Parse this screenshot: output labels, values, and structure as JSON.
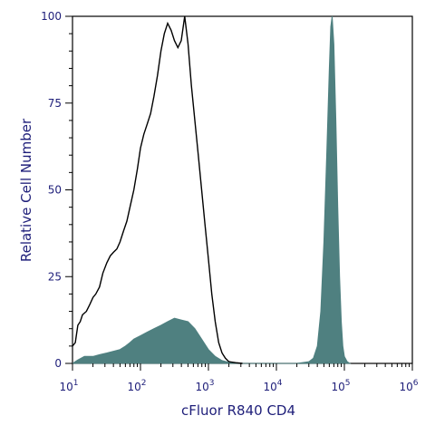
{
  "chart_data": {
    "type": "area",
    "xlabel": "cFluor R840 CD4",
    "ylabel": "Relative Cell Number",
    "x_scale": "log",
    "xlim": [
      10,
      1000000
    ],
    "ylim": [
      0,
      100
    ],
    "x_ticks": [
      {
        "base": "10",
        "exp": "1"
      },
      {
        "base": "10",
        "exp": "2"
      },
      {
        "base": "10",
        "exp": "3"
      },
      {
        "base": "10",
        "exp": "4"
      },
      {
        "base": "10",
        "exp": "5"
      },
      {
        "base": "10",
        "exp": "6"
      }
    ],
    "y_ticks": [
      "0",
      "25",
      "50",
      "75",
      "100"
    ],
    "grid": false,
    "series": [
      {
        "style": "outline",
        "color": "#000000",
        "points": [
          [
            10,
            5
          ],
          [
            11,
            6
          ],
          [
            12,
            11
          ],
          [
            13,
            12
          ],
          [
            14,
            14
          ],
          [
            16,
            15
          ],
          [
            18,
            17
          ],
          [
            20,
            19
          ],
          [
            22,
            20
          ],
          [
            25,
            22
          ],
          [
            28,
            26
          ],
          [
            32,
            29
          ],
          [
            36,
            31
          ],
          [
            40,
            32
          ],
          [
            45,
            33
          ],
          [
            50,
            35
          ],
          [
            56,
            38
          ],
          [
            63,
            41
          ],
          [
            70,
            45
          ],
          [
            80,
            50
          ],
          [
            90,
            56
          ],
          [
            100,
            62
          ],
          [
            112,
            66
          ],
          [
            126,
            69
          ],
          [
            141,
            72
          ],
          [
            158,
            77
          ],
          [
            178,
            83
          ],
          [
            200,
            90
          ],
          [
            224,
            95
          ],
          [
            251,
            98
          ],
          [
            282,
            96
          ],
          [
            316,
            93
          ],
          [
            355,
            91
          ],
          [
            398,
            93
          ],
          [
            447,
            100
          ],
          [
            501,
            92
          ],
          [
            562,
            80
          ],
          [
            631,
            70
          ],
          [
            708,
            60
          ],
          [
            794,
            50
          ],
          [
            891,
            40
          ],
          [
            1000,
            30
          ],
          [
            1122,
            20
          ],
          [
            1259,
            12
          ],
          [
            1413,
            6
          ],
          [
            1585,
            3
          ],
          [
            1778,
            1.5
          ],
          [
            2000,
            0.5
          ],
          [
            2512,
            0.2
          ],
          [
            3162,
            0
          ]
        ]
      },
      {
        "style": "filled",
        "color": "#4f8080",
        "points": [
          [
            10,
            0
          ],
          [
            12,
            1
          ],
          [
            15,
            2
          ],
          [
            20,
            2
          ],
          [
            25,
            2.5
          ],
          [
            32,
            3
          ],
          [
            40,
            3.5
          ],
          [
            50,
            4
          ],
          [
            60,
            5
          ],
          [
            70,
            6
          ],
          [
            80,
            7
          ],
          [
            100,
            8
          ],
          [
            126,
            9
          ],
          [
            158,
            10
          ],
          [
            200,
            11
          ],
          [
            251,
            12
          ],
          [
            316,
            13
          ],
          [
            398,
            12.5
          ],
          [
            501,
            12
          ],
          [
            631,
            10
          ],
          [
            794,
            7
          ],
          [
            1000,
            4
          ],
          [
            1259,
            2
          ],
          [
            1585,
            0.8
          ],
          [
            2000,
            0.3
          ],
          [
            2512,
            0
          ],
          [
            10000,
            0
          ],
          [
            20000,
            0
          ],
          [
            30000,
            0.5
          ],
          [
            35000,
            1.5
          ],
          [
            40000,
            5
          ],
          [
            45000,
            15
          ],
          [
            50000,
            35
          ],
          [
            55000,
            60
          ],
          [
            60000,
            85
          ],
          [
            63000,
            97
          ],
          [
            66000,
            100
          ],
          [
            70000,
            92
          ],
          [
            75000,
            70
          ],
          [
            80000,
            45
          ],
          [
            85000,
            25
          ],
          [
            90000,
            12
          ],
          [
            95000,
            5
          ],
          [
            100000,
            2
          ],
          [
            110000,
            0.5
          ],
          [
            120000,
            0
          ]
        ]
      }
    ]
  }
}
